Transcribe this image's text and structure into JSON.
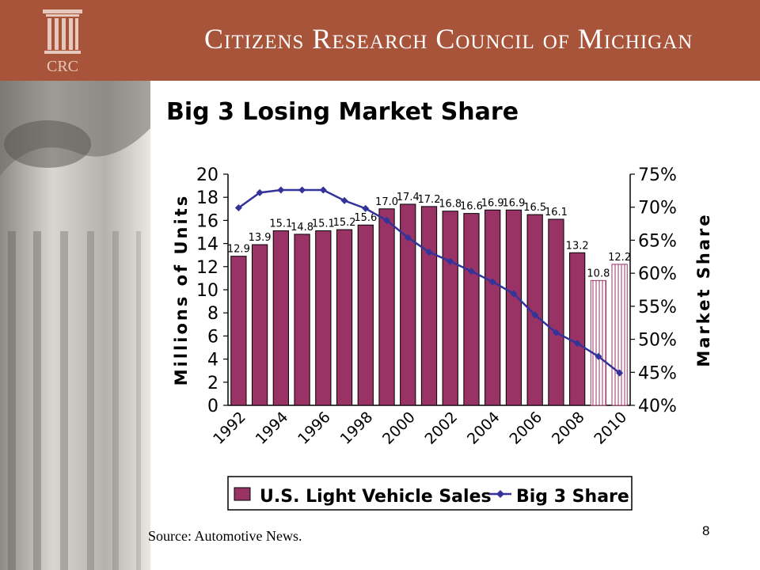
{
  "header": {
    "org_name": "Citizens Research Council of Michigan",
    "logo_text": "CRC",
    "background_color": "#a8543a"
  },
  "slide": {
    "title": "Big 3 Losing Market Share",
    "source": "Source: Automotive News.",
    "page_number": "8"
  },
  "chart_data": {
    "type": "bar",
    "categories": [
      "1992",
      "1993",
      "1994",
      "1995",
      "1996",
      "1997",
      "1998",
      "1999",
      "2000",
      "2001",
      "2002",
      "2003",
      "2004",
      "2005",
      "2006",
      "2007",
      "2008",
      "2009",
      "2010"
    ],
    "x_tick_labels": [
      "1992",
      "1994",
      "1996",
      "1998",
      "2000",
      "2002",
      "2004",
      "2006",
      "2008",
      "2010"
    ],
    "ylabel": "Millions of Units",
    "y2label": "Market Share",
    "ylim": [
      0,
      20
    ],
    "y_ticks": [
      0,
      2,
      4,
      6,
      8,
      10,
      12,
      14,
      16,
      18,
      20
    ],
    "y2lim": [
      40,
      75
    ],
    "y2_ticks": [
      "40%",
      "45%",
      "50%",
      "55%",
      "60%",
      "65%",
      "70%",
      "75%"
    ],
    "series": [
      {
        "name": "U.S. Light Vehicle Sales",
        "type": "bar",
        "axis": "left",
        "color": "#993366",
        "values": [
          12.9,
          13.9,
          15.1,
          14.8,
          15.1,
          15.2,
          15.6,
          17.0,
          17.4,
          17.2,
          16.8,
          16.6,
          16.9,
          16.9,
          16.5,
          16.1,
          13.2,
          10.8,
          12.2
        ],
        "value_labels": [
          "12.9",
          "13.9",
          "15.1",
          "14.8",
          "15.1",
          "15.2",
          "15.6",
          "17.0",
          "17.4",
          "17.2",
          "16.8",
          "16.6",
          "16.9",
          "16.9",
          "16.5",
          "16.1",
          "13.2",
          "10.8",
          "12.2"
        ],
        "projected_categories": [
          "2009",
          "2010"
        ]
      },
      {
        "name": "Big 3 Share",
        "type": "line",
        "axis": "right",
        "color": "#333399",
        "values": [
          69.9,
          72.2,
          72.6,
          72.6,
          72.6,
          71.0,
          69.8,
          68.0,
          65.4,
          63.2,
          61.8,
          60.3,
          58.7,
          56.9,
          53.7,
          51.0,
          49.4,
          47.4,
          44.9
        ]
      }
    ],
    "legend_position": "bottom"
  }
}
